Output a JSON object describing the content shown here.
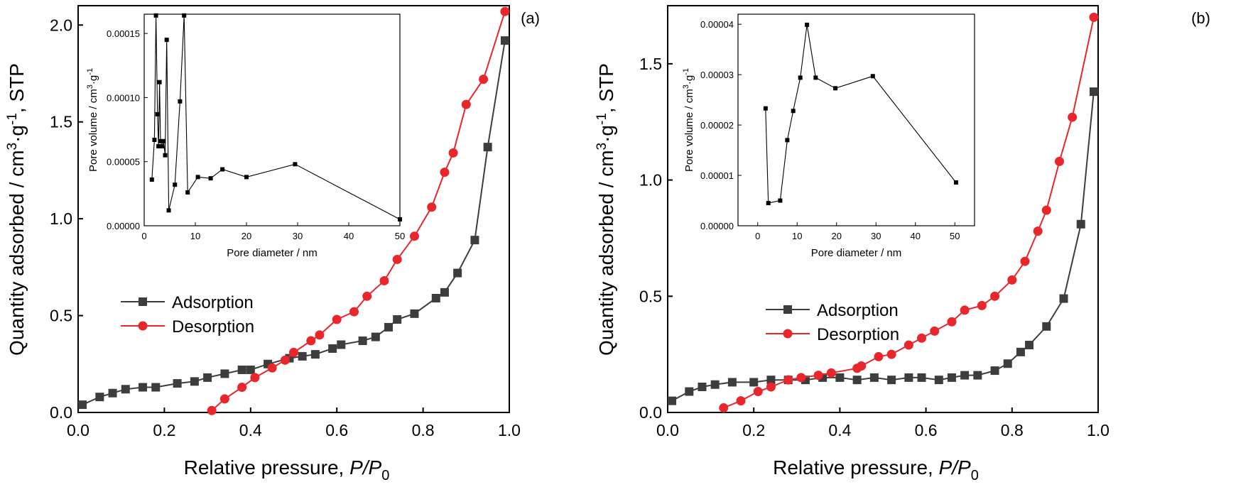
{
  "colors": {
    "adsorption": "#3d3d3d",
    "desorption": "#e8262b",
    "inset": "#000000"
  },
  "chart_data": [
    {
      "panel": "(a)",
      "type": "line",
      "xlabel": "Relative pressure, ",
      "xlabel_ital": "P/P",
      "xlabel_sub": "0",
      "ylabel": "Quantity adsorbed / cm3·g-1, STP",
      "xlim": [
        0,
        1.0
      ],
      "ylim": [
        0,
        2.1
      ],
      "xticks": [
        "0.0",
        "0.2",
        "0.4",
        "0.6",
        "0.8",
        "1.0"
      ],
      "yticks": [
        "0.0",
        "0.5",
        "1.0",
        "1.5",
        "2.0"
      ],
      "ytick_vals": [
        0,
        0.5,
        1.0,
        1.5,
        2.0
      ],
      "legend": [
        "Adsorption",
        "Desorption"
      ],
      "series": [
        {
          "name": "Adsorption",
          "marker": "square",
          "x": [
            0.01,
            0.05,
            0.08,
            0.11,
            0.15,
            0.18,
            0.23,
            0.27,
            0.3,
            0.34,
            0.38,
            0.4,
            0.44,
            0.49,
            0.52,
            0.55,
            0.59,
            0.61,
            0.66,
            0.69,
            0.72,
            0.74,
            0.78,
            0.83,
            0.85,
            0.88,
            0.92,
            0.95,
            0.99
          ],
          "y": [
            0.04,
            0.08,
            0.1,
            0.12,
            0.13,
            0.13,
            0.15,
            0.16,
            0.18,
            0.2,
            0.22,
            0.22,
            0.25,
            0.28,
            0.29,
            0.3,
            0.33,
            0.35,
            0.37,
            0.39,
            0.44,
            0.48,
            0.51,
            0.59,
            0.62,
            0.72,
            0.89,
            1.37,
            1.92
          ]
        },
        {
          "name": "Desorption",
          "marker": "circle",
          "x": [
            0.31,
            0.34,
            0.38,
            0.41,
            0.45,
            0.48,
            0.5,
            0.54,
            0.56,
            0.6,
            0.64,
            0.67,
            0.71,
            0.74,
            0.78,
            0.82,
            0.85,
            0.87,
            0.9,
            0.94,
            0.99
          ],
          "y": [
            0.01,
            0.07,
            0.13,
            0.18,
            0.23,
            0.27,
            0.31,
            0.37,
            0.4,
            0.48,
            0.52,
            0.6,
            0.68,
            0.79,
            0.91,
            1.06,
            1.24,
            1.34,
            1.59,
            1.72,
            2.07
          ]
        }
      ],
      "inset": {
        "xlabel": "Pore diameter / nm",
        "ylabel": "Pore volume / cm3·g-1",
        "xlim": [
          0,
          50
        ],
        "ylim": [
          0,
          0.000165
        ],
        "xticks": [
          "0",
          "10",
          "20",
          "30",
          "40",
          "50"
        ],
        "xtick_vals": [
          0,
          10,
          20,
          30,
          40,
          50
        ],
        "yticks": [
          "0.00000",
          "0.00005",
          "0.00010",
          "0.00015"
        ],
        "ytick_vals": [
          0,
          5e-05,
          0.0001,
          0.00015
        ],
        "x": [
          1.5,
          2.0,
          2.3,
          2.6,
          2.8,
          3.0,
          3.2,
          3.5,
          3.8,
          4.1,
          4.4,
          4.8,
          6.0,
          7.0,
          7.8,
          8.5,
          10.5,
          13.0,
          15.3,
          20.0,
          29.5,
          50.0
        ],
        "y": [
          3.6e-05,
          6.7e-05,
          0.000164,
          8.7e-05,
          6.2e-05,
          0.000112,
          6.6e-05,
          6.2e-05,
          6.6e-05,
          5.5e-05,
          0.000145,
          1.2e-05,
          3.2e-05,
          9.7e-05,
          0.000164,
          2.6e-05,
          3.8e-05,
          3.7e-05,
          4.4e-05,
          3.8e-05,
          4.8e-05,
          5e-06
        ]
      }
    },
    {
      "panel": "(b)",
      "type": "line",
      "xlabel": "Relative pressure, ",
      "xlabel_ital": "P/P",
      "xlabel_sub": "0",
      "ylabel": "Quantity adsorbed / cm3·g-1, STP",
      "xlim": [
        0,
        1.0
      ],
      "ylim": [
        0,
        1.75
      ],
      "xticks": [
        "0.0",
        "0.2",
        "0.4",
        "0.6",
        "0.8",
        "1.0"
      ],
      "yticks": [
        "0.0",
        "0.5",
        "1.0",
        "1.5"
      ],
      "ytick_vals": [
        0,
        0.5,
        1.0,
        1.5
      ],
      "legend": [
        "Adsorption",
        "Desorption"
      ],
      "series": [
        {
          "name": "Adsorption",
          "marker": "square",
          "x": [
            0.01,
            0.05,
            0.08,
            0.11,
            0.15,
            0.2,
            0.24,
            0.28,
            0.32,
            0.36,
            0.4,
            0.44,
            0.48,
            0.52,
            0.56,
            0.59,
            0.63,
            0.66,
            0.69,
            0.72,
            0.76,
            0.79,
            0.82,
            0.84,
            0.88,
            0.92,
            0.96,
            0.99
          ],
          "y": [
            0.05,
            0.09,
            0.11,
            0.12,
            0.13,
            0.13,
            0.14,
            0.14,
            0.14,
            0.15,
            0.15,
            0.14,
            0.15,
            0.14,
            0.15,
            0.15,
            0.14,
            0.15,
            0.16,
            0.16,
            0.18,
            0.21,
            0.26,
            0.29,
            0.37,
            0.49,
            0.81,
            1.38
          ]
        },
        {
          "name": "Desorption",
          "marker": "circle",
          "x": [
            0.13,
            0.17,
            0.21,
            0.24,
            0.28,
            0.31,
            0.35,
            0.38,
            0.44,
            0.45,
            0.49,
            0.52,
            0.56,
            0.59,
            0.62,
            0.66,
            0.69,
            0.73,
            0.76,
            0.8,
            0.83,
            0.86,
            0.88,
            0.91,
            0.94,
            0.99
          ],
          "y": [
            0.02,
            0.05,
            0.09,
            0.11,
            0.14,
            0.15,
            0.16,
            0.17,
            0.19,
            0.2,
            0.24,
            0.25,
            0.29,
            0.32,
            0.35,
            0.39,
            0.44,
            0.46,
            0.5,
            0.57,
            0.65,
            0.78,
            0.87,
            1.08,
            1.27,
            1.7
          ]
        }
      ],
      "inset": {
        "xlabel": "Pore diameter / nm",
        "ylabel": "Pore volume / cm3·g-1",
        "xlim": [
          -5,
          55
        ],
        "ylim": [
          0,
          4.2e-05
        ],
        "xticks": [
          "0",
          "10",
          "20",
          "30",
          "40",
          "50"
        ],
        "xtick_vals": [
          0,
          10,
          20,
          30,
          40,
          50
        ],
        "yticks": [
          "0.00000",
          "0.00001",
          "0.00002",
          "0.00003",
          "0.00004"
        ],
        "ytick_vals": [
          0,
          1e-05,
          2e-05,
          3e-05,
          4e-05
        ],
        "x": [
          2.0,
          2.7,
          5.7,
          7.5,
          9.0,
          10.8,
          12.5,
          14.7,
          19.7,
          29.2,
          50.3
        ],
        "y": [
          2.33e-05,
          4.5e-06,
          5e-06,
          1.7e-05,
          2.28e-05,
          2.94e-05,
          3.99e-05,
          2.94e-05,
          2.73e-05,
          2.97e-05,
          8.6e-06
        ]
      }
    }
  ]
}
